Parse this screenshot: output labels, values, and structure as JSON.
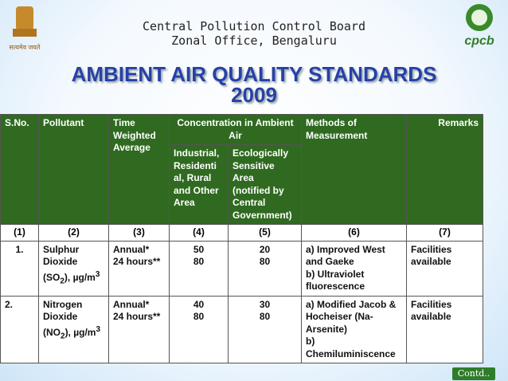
{
  "header": {
    "org_line1": "Central Pollution Control Board",
    "org_line2": "Zonal Office, Bengaluru",
    "emblem_motto": "सत्यमेव जयते",
    "logo_text": "cpcb"
  },
  "title": {
    "line1": "AMBIENT AIR QUALITY STANDARDS",
    "line2": "2009"
  },
  "table": {
    "headers": {
      "sno": "S.No.",
      "pollutant": "Pollutant",
      "time": [
        "Time",
        "Weighted",
        "Average"
      ],
      "concentration": "Concentration in Ambient Air",
      "industrial": [
        "Industrial,",
        "Residenti",
        "al, Rural",
        "and Other",
        "Area"
      ],
      "ecological": [
        "Ecologically",
        "Sensitive",
        "Area",
        "(notified by",
        "Central",
        "Government)"
      ],
      "methods": [
        "Methods of",
        "Measurement"
      ],
      "remarks": "Remarks"
    },
    "column_numbers": [
      "(1)",
      "(2)",
      "(3)",
      "(4)",
      "(5)",
      "(6)",
      "(7)"
    ],
    "rows": [
      {
        "sno": "1.",
        "pollutant": [
          "Sulphur",
          "Dioxide",
          "(SO",
          "2",
          "), µg/m",
          "3"
        ],
        "time": [
          "Annual*",
          "24 hours**"
        ],
        "industrial": [
          50,
          80
        ],
        "ecological": [
          20,
          80
        ],
        "methods": [
          "a) Improved West",
          "and Gaeke",
          "b) Ultraviolet",
          "fluorescence"
        ],
        "remarks": [
          "Facilities",
          "available"
        ]
      },
      {
        "sno": "2.",
        "pollutant": [
          "Nitrogen",
          "Dioxide",
          "(NO",
          "2",
          "), µg/m",
          "3"
        ],
        "time": [
          "Annual*",
          "24 hours**"
        ],
        "industrial": [
          40,
          80
        ],
        "ecological": [
          30,
          80
        ],
        "methods": [
          "a) Modified Jacob &",
          "Hocheiser  (Na-",
          "Arsenite)",
          "b)",
          "Chemiluminiscence"
        ],
        "remarks": [
          "Facilities",
          "available"
        ]
      }
    ]
  },
  "footer": {
    "continued": "Contd.."
  }
}
